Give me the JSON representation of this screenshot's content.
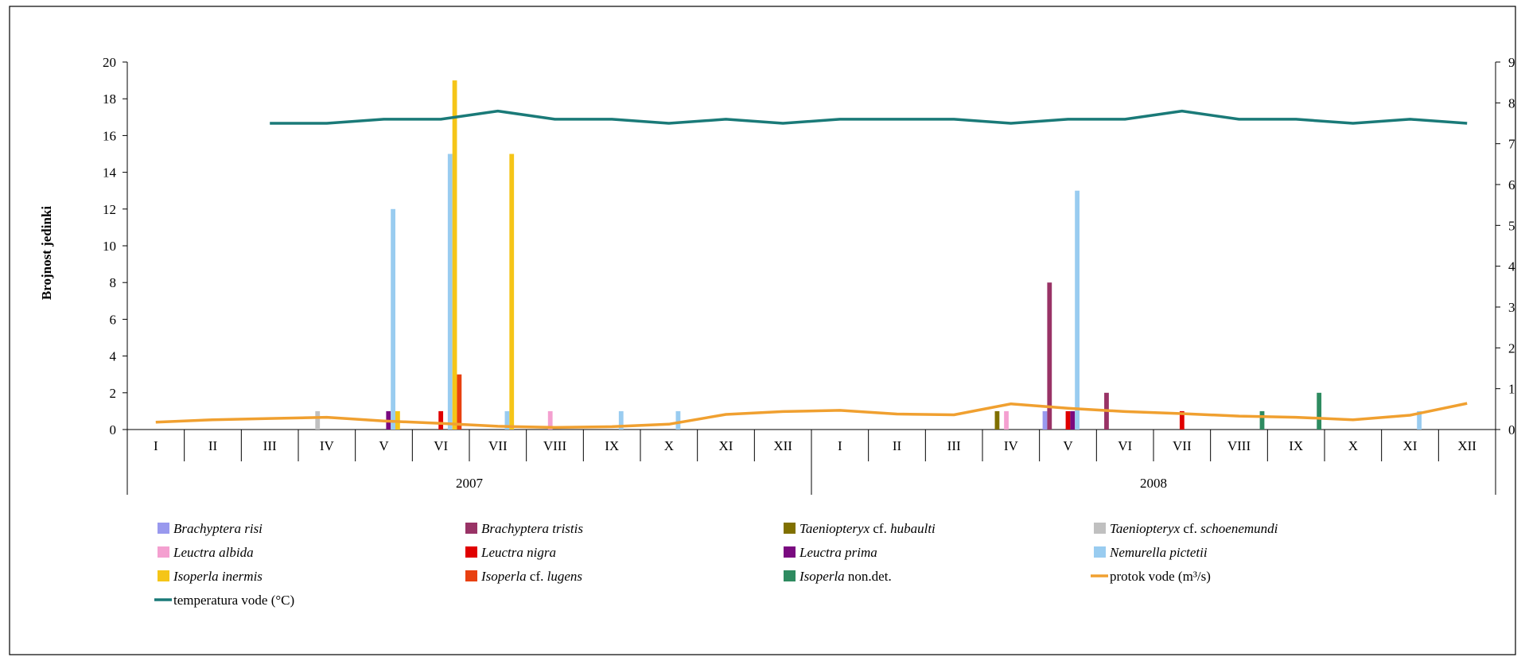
{
  "chart_data": {
    "type": "bar",
    "ylabel": "Brojnost jedinki",
    "ylim": [
      0,
      20
    ],
    "yticks": [
      0,
      2,
      4,
      6,
      8,
      10,
      12,
      14,
      16,
      18,
      20
    ],
    "y2lim": [
      0,
      9
    ],
    "y2ticks": [
      0,
      1,
      2,
      3,
      4,
      5,
      6,
      7,
      8,
      9
    ],
    "categories": [
      "I",
      "II",
      "III",
      "IV",
      "V",
      "VI",
      "VII",
      "VIII",
      "IX",
      "X",
      "XI",
      "XII",
      "I",
      "II",
      "III",
      "IV",
      "V",
      "VI",
      "VII",
      "VIII",
      "IX",
      "X",
      "XI",
      "XII"
    ],
    "years": [
      {
        "label": "2007",
        "start": 0,
        "end": 12
      },
      {
        "label": "2008",
        "start": 12,
        "end": 24
      }
    ],
    "series": [
      {
        "label": "Brachyptera risi",
        "italic": "Brachyptera risi",
        "rest": "",
        "color": "#9999ee",
        "values": [
          0,
          0,
          0,
          0,
          0,
          0,
          0,
          0,
          0,
          0,
          0,
          0,
          0,
          0,
          0,
          0,
          1,
          0,
          0,
          0,
          0,
          0,
          0,
          0
        ]
      },
      {
        "label": "Brachyptera tristis",
        "italic": "Brachyptera tristis",
        "rest": "",
        "color": "#993366",
        "values": [
          0,
          0,
          0,
          0,
          0,
          0,
          0,
          0,
          0,
          0,
          0,
          0,
          0,
          0,
          0,
          0,
          8,
          2,
          0,
          0,
          0,
          0,
          0,
          0
        ]
      },
      {
        "label": "Taeniopteryx cf. hubaulti",
        "italic": "Taeniopteryx",
        "rest": " cf. ",
        "italic2": "hubaulti",
        "color": "#807000",
        "values": [
          0,
          0,
          0,
          0,
          0,
          0,
          0,
          0,
          0,
          0,
          0,
          0,
          0,
          0,
          0,
          1,
          0,
          0,
          0,
          0,
          0,
          0,
          0,
          0
        ]
      },
      {
        "label": "Taeniopteryx cf. schoenemundi",
        "italic": "Taeniopteryx",
        "rest": " cf. ",
        "italic2": "schoenemundi",
        "color": "#c0c0c0",
        "values": [
          0,
          0,
          0,
          1,
          0,
          0,
          0,
          0,
          0,
          0,
          0,
          0,
          0,
          0,
          0,
          0,
          0,
          0,
          0,
          0,
          0,
          0,
          0,
          0
        ]
      },
      {
        "label": "Leuctra albida",
        "italic": "Leuctra albida",
        "rest": "",
        "color": "#f4a0d0",
        "values": [
          0,
          0,
          0,
          0,
          0,
          0,
          0,
          1,
          0,
          0,
          0,
          0,
          0,
          0,
          0,
          1,
          0,
          0,
          0,
          0,
          0,
          0,
          0,
          0
        ]
      },
      {
        "label": "Leuctra nigra",
        "italic": "Leuctra nigra",
        "rest": "",
        "color": "#e00000",
        "values": [
          0,
          0,
          0,
          0,
          0,
          1,
          0,
          0,
          0,
          0,
          0,
          0,
          0,
          0,
          0,
          0,
          1,
          0,
          1,
          0,
          0,
          0,
          0,
          0
        ]
      },
      {
        "label": "Leuctra prima",
        "italic": "Leuctra prima",
        "rest": "",
        "color": "#7a0a80",
        "values": [
          0,
          0,
          0,
          0,
          1,
          0,
          0,
          0,
          0,
          0,
          0,
          0,
          0,
          0,
          0,
          0,
          1,
          0,
          0,
          0,
          0,
          0,
          0,
          0
        ]
      },
      {
        "label": "Nemurella pictetii",
        "italic": "Nemurella pictetii",
        "rest": "",
        "color": "#99ccf0",
        "values": [
          0,
          0,
          0,
          0,
          12,
          15,
          1,
          0,
          1,
          1,
          0,
          0,
          0,
          0,
          0,
          0,
          13,
          0,
          0,
          0,
          0,
          0,
          1,
          0
        ]
      },
      {
        "label": "Isoperla inermis",
        "italic": "Isoperla inermis",
        "rest": "",
        "color": "#f5c518",
        "values": [
          0,
          0,
          0,
          0,
          1,
          19,
          15,
          0,
          0,
          0,
          0,
          0,
          0,
          0,
          0,
          0,
          0,
          0,
          0,
          0,
          0,
          0,
          0,
          0
        ]
      },
      {
        "label": "Isoperla cf. lugens",
        "italic": "Isoperla",
        "rest": " cf. ",
        "italic2": "lugens",
        "color": "#e84010",
        "values": [
          0,
          0,
          0,
          0,
          0,
          3,
          0,
          0,
          0,
          0,
          0,
          0,
          0,
          0,
          0,
          0,
          0,
          0,
          0,
          0,
          0,
          0,
          0,
          0
        ]
      },
      {
        "label": "Isoperla non.det.",
        "italic": "Isoperla",
        "rest": " non.det.",
        "color": "#2e8b60",
        "values": [
          0,
          0,
          0,
          0,
          0,
          0,
          0,
          0,
          0,
          0,
          0,
          0,
          0,
          0,
          0,
          0,
          0,
          0,
          0,
          1,
          2,
          0,
          0,
          0
        ]
      }
    ],
    "lines": [
      {
        "label": "protok vode (m³/s)",
        "color": "#f0a030",
        "axis": "right",
        "values": [
          0.18,
          0.24,
          0.27,
          0.3,
          0.21,
          0.15,
          0.08,
          0.05,
          0.07,
          0.13,
          0.37,
          0.44,
          0.47,
          0.38,
          0.36,
          0.63,
          0.52,
          0.44,
          0.39,
          0.33,
          0.3,
          0.24,
          0.35,
          0.64
        ]
      },
      {
        "label": "temperatura vode (°C)",
        "color": "#1a7a78",
        "axis": "right",
        "values": [
          null,
          null,
          7.5,
          7.5,
          7.6,
          7.6,
          7.8,
          7.6,
          7.6,
          7.5,
          7.6,
          7.5,
          7.6,
          7.6,
          7.6,
          7.5,
          7.6,
          7.6,
          7.8,
          7.6,
          7.6,
          7.5,
          7.6,
          7.5
        ]
      }
    ],
    "legend_position": "bottom"
  }
}
